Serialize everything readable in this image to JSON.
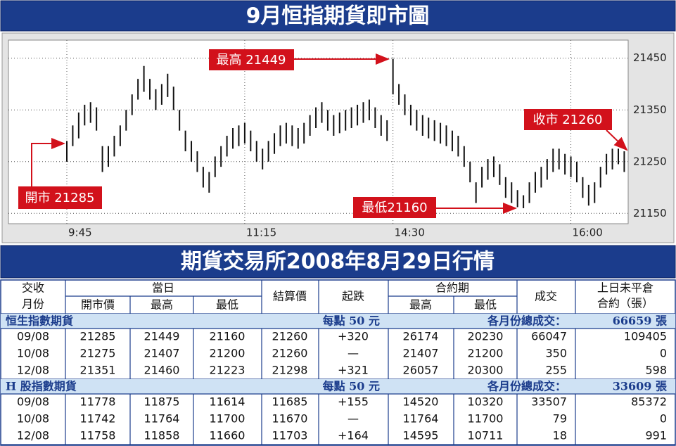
{
  "chart_data": {
    "type": "hilo",
    "title": "9月恒指期貨即市圖",
    "color": "#111111",
    "grid": true,
    "categories": [
      null,
      null,
      null,
      null,
      null,
      null,
      null,
      null,
      null,
      null,
      null,
      null,
      null,
      null,
      null,
      null,
      null,
      null,
      null,
      null,
      null,
      null,
      null,
      null,
      null,
      null,
      null,
      null,
      null,
      null,
      "11:15",
      null,
      null,
      null,
      null,
      null,
      null,
      null,
      null,
      null,
      null,
      null,
      null,
      null,
      null,
      null,
      null,
      null,
      null,
      null,
      null,
      null,
      null,
      null,
      null,
      "14:30",
      null,
      null,
      null,
      null,
      null,
      null,
      null,
      null,
      null,
      null,
      null,
      null,
      null,
      null,
      null,
      null,
      null,
      null,
      null,
      null,
      null,
      null,
      null,
      null,
      null,
      null,
      null,
      null,
      null,
      "16:00",
      null,
      null,
      null,
      null,
      null,
      null,
      null,
      null,
      null
    ],
    "first_label": "9:45",
    "high": [
      21290,
      21320,
      21345,
      21360,
      21365,
      21355,
      21280,
      21280,
      21300,
      21320,
      21350,
      21380,
      21410,
      21435,
      21410,
      21390,
      21400,
      21420,
      21395,
      21350,
      21310,
      21290,
      21270,
      21240,
      21230,
      21260,
      21280,
      21300,
      21315,
      21320,
      21325,
      21310,
      21290,
      21275,
      21290,
      21305,
      21320,
      21325,
      21320,
      21315,
      21325,
      21340,
      21355,
      21365,
      21350,
      21340,
      21345,
      21350,
      21355,
      21360,
      21365,
      21370,
      21355,
      21340,
      21330,
      21449,
      21400,
      21380,
      21360,
      21350,
      21340,
      21335,
      21330,
      21325,
      21320,
      21310,
      21300,
      21280,
      21250,
      21210,
      21240,
      21255,
      21260,
      21245,
      21220,
      21210,
      21195,
      21185,
      21210,
      21230,
      21240,
      21255,
      21275,
      21275,
      21265,
      21260,
      21250,
      21220,
      21205,
      21210,
      21240,
      21265,
      21275,
      21275,
      21270
    ],
    "low": [
      21250,
      21280,
      21295,
      21320,
      21325,
      21310,
      21230,
      21240,
      21260,
      21280,
      21310,
      21340,
      21370,
      21385,
      21370,
      21350,
      21360,
      21375,
      21350,
      21310,
      21270,
      21250,
      21230,
      21200,
      21190,
      21220,
      21240,
      21260,
      21275,
      21280,
      21285,
      21270,
      21250,
      21235,
      21250,
      21265,
      21280,
      21285,
      21280,
      21275,
      21285,
      21300,
      21315,
      21325,
      21310,
      21300,
      21305,
      21310,
      21315,
      21320,
      21325,
      21330,
      21315,
      21300,
      21290,
      21380,
      21360,
      21340,
      21320,
      21310,
      21300,
      21295,
      21290,
      21285,
      21280,
      21270,
      21260,
      21240,
      21210,
      21170,
      21200,
      21215,
      21220,
      21205,
      21180,
      21170,
      21162,
      21160,
      21170,
      21190,
      21200,
      21215,
      21230,
      21235,
      21225,
      21220,
      21210,
      21180,
      21165,
      21170,
      21200,
      21225,
      21235,
      21245,
      21230
    ],
    "ylim": [
      21130,
      21485
    ],
    "yticks": [
      21150,
      21250,
      21350,
      21450
    ],
    "annotations": [
      "最高 21449",
      "開市 21285",
      "收市 21260",
      "最低21160"
    ]
  },
  "table": {
    "title": "期貨交易所2008年8月29日行情",
    "header": {
      "month": [
        "交收",
        "月份"
      ],
      "day": "當日",
      "open": "開市價",
      "high": "最高",
      "low": "最低",
      "settle": "結算價",
      "change": "起跌",
      "contract": "合約期",
      "c_high": "最高",
      "c_low": "最低",
      "volume": "成交",
      "oi": [
        "上日未平倉",
        "合約（張）"
      ]
    },
    "sections": [
      {
        "title": "恒生指數期貨",
        "unit": "每點 50 元",
        "total_label": "各月份總成交：",
        "total": "66659 張",
        "rows": [
          [
            "09/08",
            "21285",
            "21449",
            "21160",
            "21260",
            "+320",
            "26174",
            "20230",
            "66047",
            "109405"
          ],
          [
            "10/08",
            "21275",
            "21407",
            "21200",
            "21260",
            "—",
            "21407",
            "21200",
            "350",
            "0"
          ],
          [
            "12/08",
            "21351",
            "21460",
            "21223",
            "21298",
            "+321",
            "26057",
            "20300",
            "255",
            "598"
          ]
        ]
      },
      {
        "title": "H 股指數期貨",
        "unit": "每點 50 元",
        "total_label": "各月份總成交：",
        "total": "33609 張",
        "rows": [
          [
            "09/08",
            "11778",
            "11875",
            "11614",
            "11685",
            "+155",
            "14520",
            "10320",
            "33507",
            "85372"
          ],
          [
            "10/08",
            "11742",
            "11764",
            "11700",
            "11670",
            "—",
            "11764",
            "11700",
            "79",
            "0"
          ],
          [
            "12/08",
            "11758",
            "11858",
            "11660",
            "11703",
            "+164",
            "14595",
            "10711",
            "18",
            "991"
          ]
        ]
      }
    ]
  }
}
